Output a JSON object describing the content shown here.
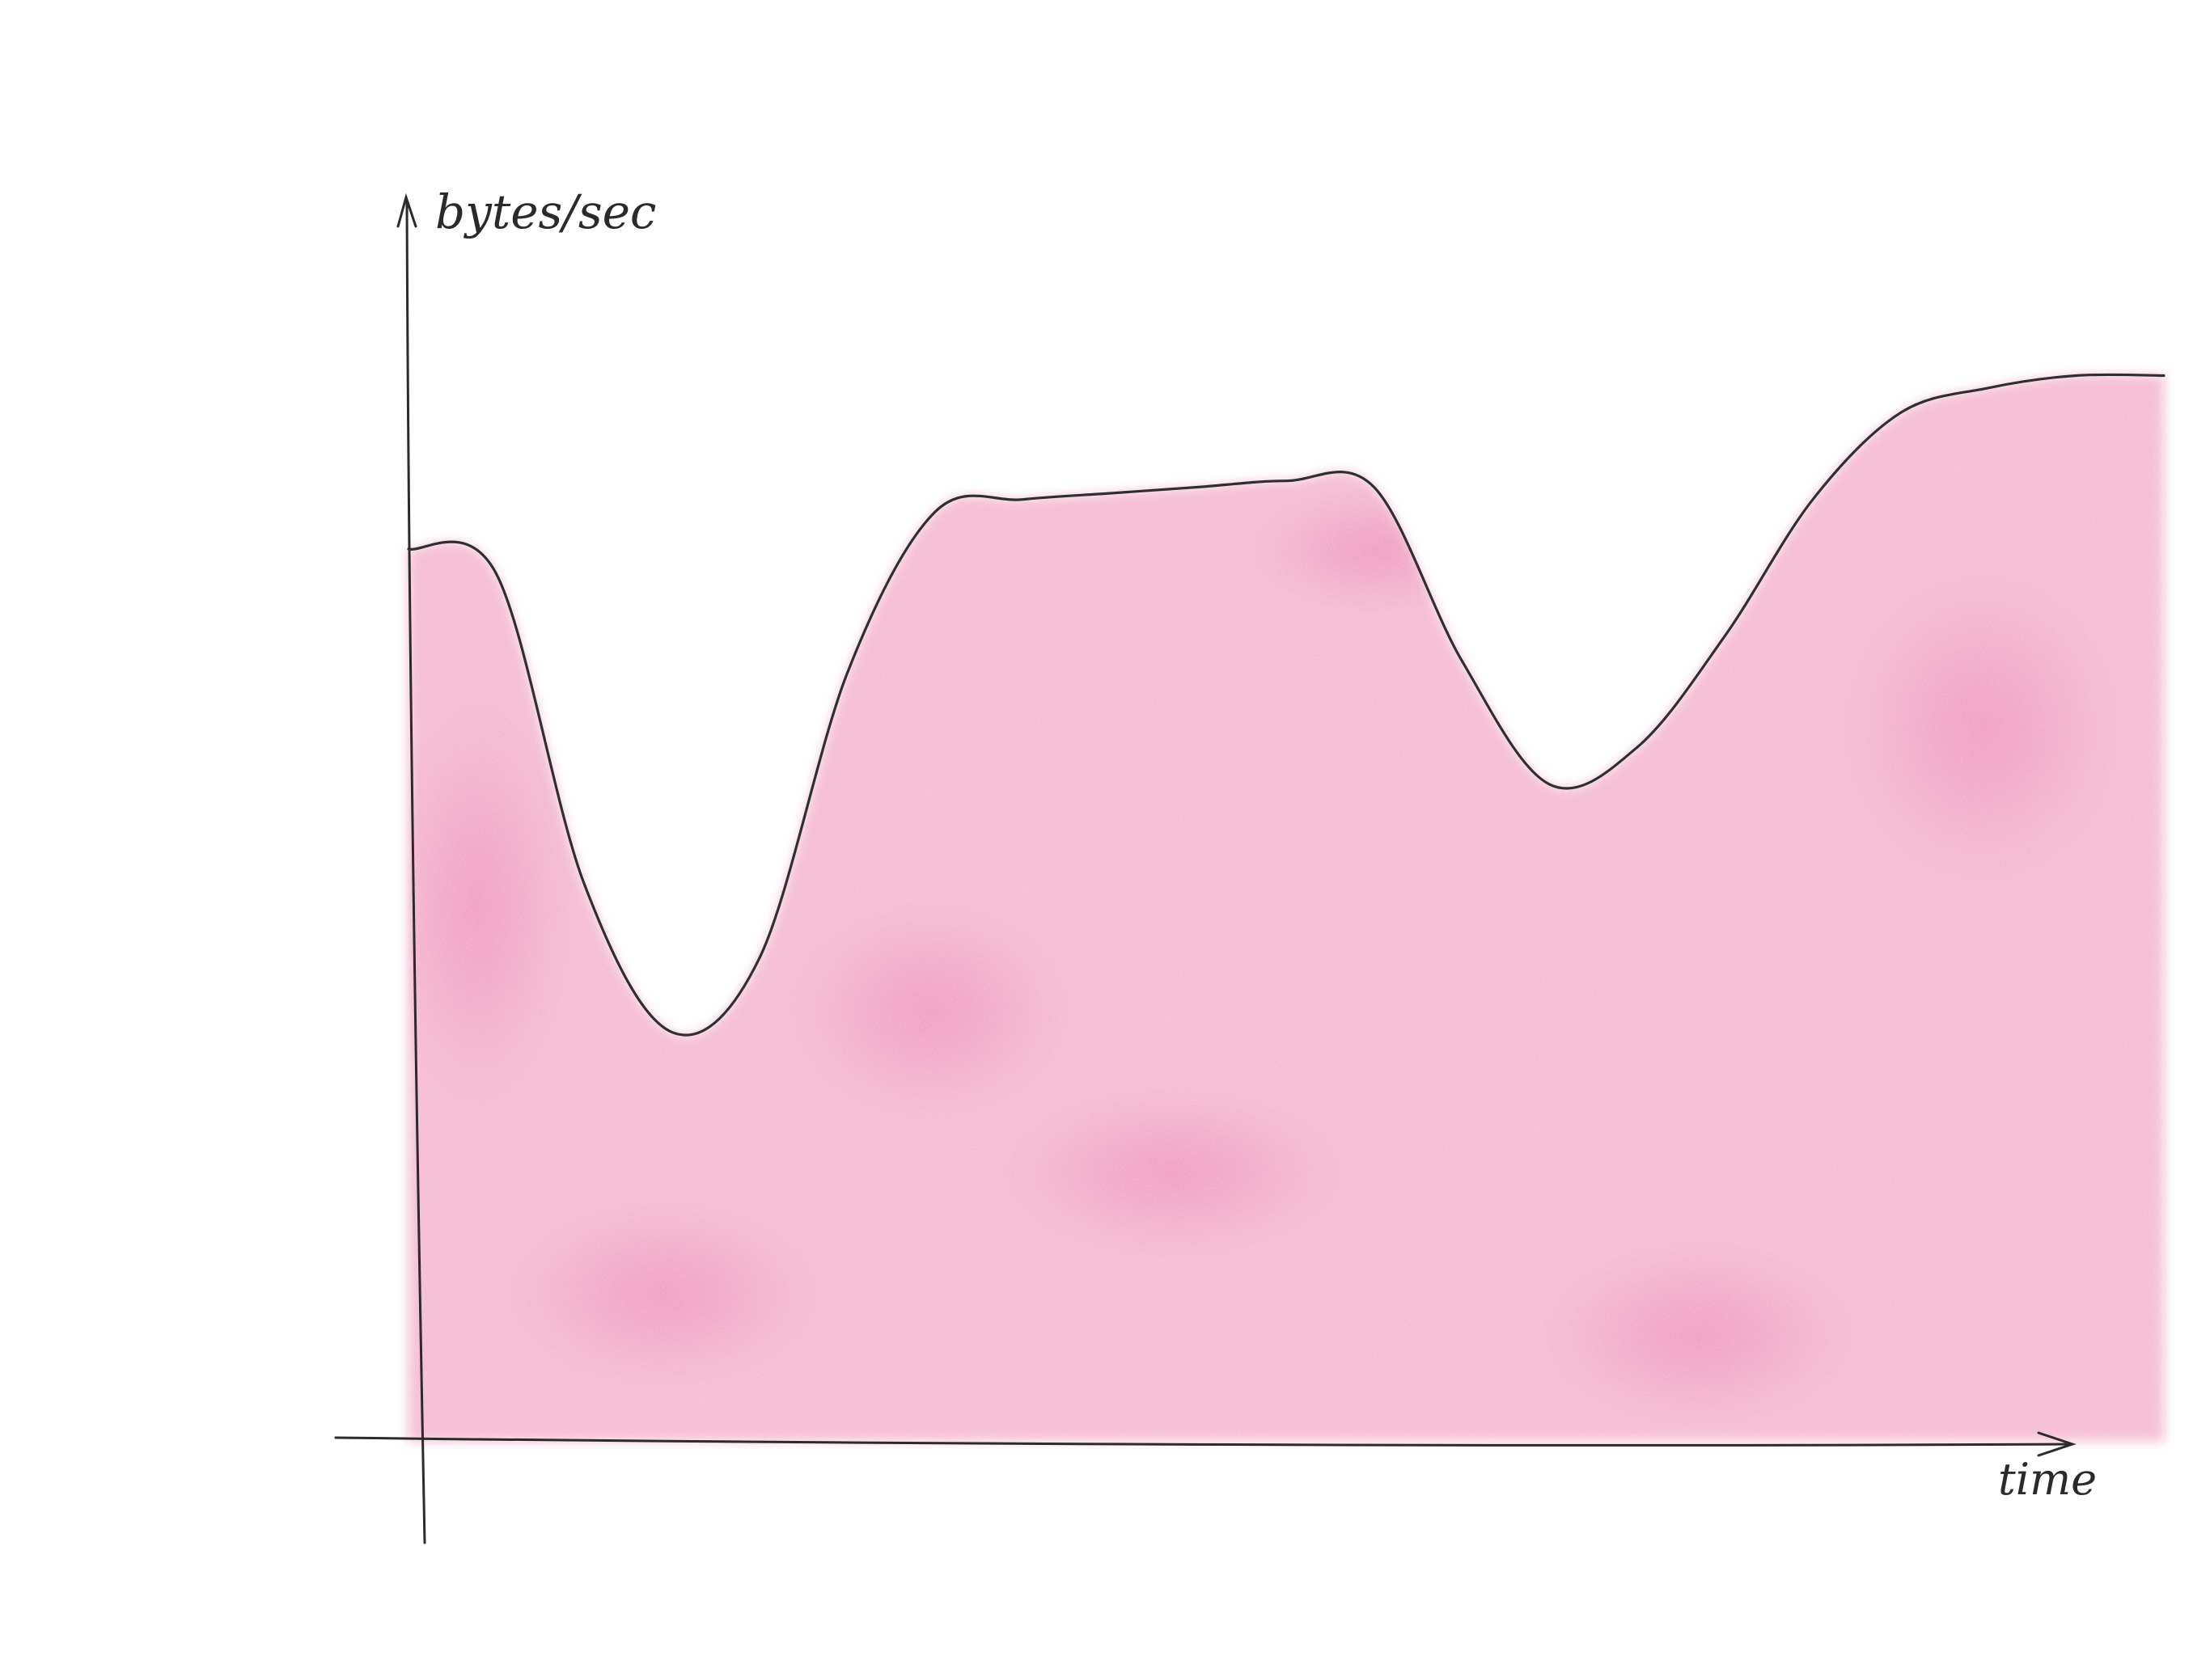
{
  "chart_data": {
    "type": "area",
    "title": "",
    "xlabel": "time",
    "ylabel": "bytes/sec",
    "x": [
      0,
      1,
      2,
      3,
      4,
      5,
      6,
      7,
      8,
      9,
      10,
      11,
      12,
      13,
      14,
      15,
      16,
      17,
      18,
      19,
      20
    ],
    "series": [
      {
        "values": [
          7.2,
          7.0,
          4.5,
          3.3,
          3.9,
          6.2,
          7.5,
          7.6,
          7.65,
          7.7,
          7.75,
          7.7,
          6.3,
          5.3,
          5.6,
          6.5,
          7.6,
          8.3,
          8.5,
          8.6,
          8.6
        ]
      }
    ],
    "xlim": [
      0,
      20
    ],
    "ylim": [
      0,
      10
    ],
    "grid": false,
    "fill_color": "#e8679b",
    "line_color": "#2f2f2f"
  }
}
